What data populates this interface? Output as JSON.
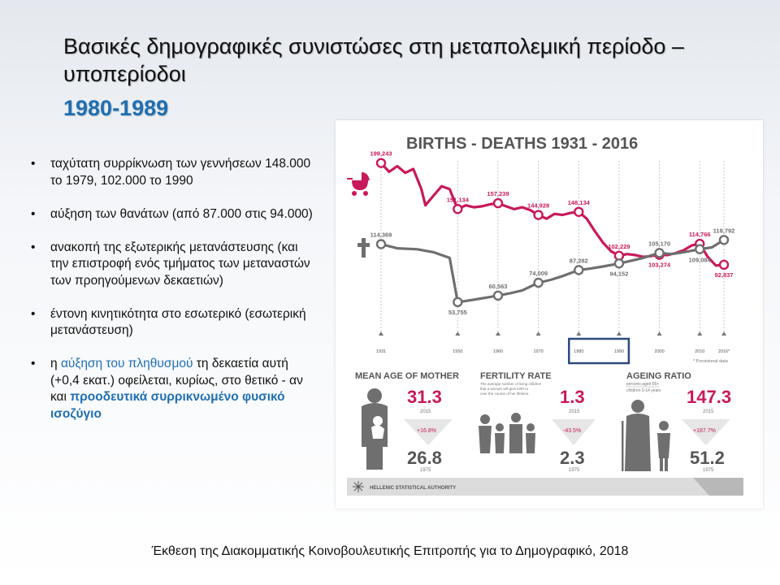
{
  "slide": {
    "title": "Βασικές δημογραφικές συνιστώσες στη μεταπολεμική περίοδο – υποπερίοδοι",
    "subtitle": "1980-1989",
    "caption": "Έκθεση της Διακομματικής Κοινοβουλευτικής Επιτροπής για το Δημογραφικό, 2018"
  },
  "bullets": [
    {
      "text": "ταχύτατη συρρίκνωση των γεννήσεων 148.000 το 1979, 102.000 το 1990"
    },
    {
      "text": "αύξηση των θανάτων (από 87.000 στις 94.000)"
    },
    {
      "text": "ανακοπή της εξωτερικής μετανάστευσης (και την επιστροφή ενός τμήματος των μεταναστών των προηγούμενων δεκαετιών)"
    },
    {
      "text": "έντονη κινητικότητα στο εσωτερικό (εσωτερική μετανάστευση)"
    },
    {
      "pre": "η ",
      "highlight": "αύξηση του πληθυσμού",
      "mid": " τη δεκαετία αυτή (+0,4 εκατ.) οφείλεται, κυρίως, στο θετικό - αν και ",
      "highlight_bold": "προοδευτικά συρρικνωμένο φυσικό ισοζύγιο"
    }
  ],
  "infographic": {
    "title": "BIRTHS - DEATHS 1931 - 2016",
    "provisional_note": "* Provisional data",
    "authority": "HELLENIC STATISTICAL AUTHORITY",
    "colors": {
      "births": "#c8195a",
      "deaths": "#6f6f6f",
      "highlight_box": "#2c4a7c"
    },
    "mean_age": {
      "label": "MEAN AGE OF MOTHER",
      "current": "31.3",
      "current_year": "2015",
      "change": "+16.8%",
      "past": "26.8",
      "past_year": "1975"
    },
    "fertility": {
      "label": "FERTILITY RATE",
      "desc": [
        "The average number of living children",
        "that a woman will give birth to",
        "over the course of her lifetime."
      ],
      "current": "1.3",
      "current_year": "2015",
      "change": "-43.5%",
      "past": "2.3",
      "past_year": "1975"
    },
    "ageing": {
      "label": "AGEING RATIO",
      "desc": [
        "persons aged 65+",
        "children 0-14 years"
      ],
      "current": "147.3",
      "current_year": "2015",
      "change": "+187.7%",
      "past": "51.2",
      "past_year": "1975"
    }
  },
  "chart_data": {
    "type": "line",
    "title": "BIRTHS - DEATHS 1931 - 2016",
    "xlim": [
      1931,
      2016
    ],
    "x_ticks": [
      "1931",
      "1950",
      "1960",
      "1970",
      "1980",
      "1990",
      "2000",
      "2010",
      "2016*"
    ],
    "x_tick_values": [
      1931,
      1950,
      1960,
      1970,
      1980,
      1990,
      2000,
      2010,
      2016
    ],
    "highlight_range": [
      1980,
      1990
    ],
    "series": [
      {
        "key": "births",
        "x": [
          1931,
          1933,
          1935,
          1937,
          1939,
          1941,
          1942,
          1944,
          1946,
          1948,
          1950,
          1952,
          1954,
          1956,
          1958,
          1960,
          1962,
          1964,
          1966,
          1968,
          1970,
          1972,
          1974,
          1976,
          1978,
          1980,
          1982,
          1984,
          1986,
          1988,
          1990,
          1992,
          1994,
          1996,
          1998,
          2000,
          2002,
          2004,
          2006,
          2008,
          2010,
          2012,
          2014,
          2016
        ],
        "values": [
          199243,
          190000,
          196000,
          189000,
          193000,
          172000,
          155000,
          165000,
          175000,
          172000,
          151134,
          155000,
          153000,
          154000,
          156000,
          157239,
          154000,
          151000,
          153000,
          150000,
          144928,
          141000,
          146000,
          145000,
          147000,
          148134,
          141000,
          128000,
          116000,
          107000,
          102229,
          104000,
          103000,
          101000,
          102000,
          103274,
          103000,
          105000,
          108000,
          113000,
          114766,
          101000,
          92000,
          92837
        ],
        "labels": [
          {
            "x": 1931,
            "text": "199,243"
          },
          {
            "x": 1950,
            "text": "151,134"
          },
          {
            "x": 1960,
            "text": "157,239"
          },
          {
            "x": 1970,
            "text": "144,928"
          },
          {
            "x": 1980,
            "text": "148,134"
          },
          {
            "x": 1990,
            "text": "102,229"
          },
          {
            "x": 2000,
            "text": "103,274"
          },
          {
            "x": 2010,
            "text": "114,766"
          },
          {
            "x": 2016,
            "text": "92,837"
          }
        ]
      },
      {
        "key": "deaths",
        "x": [
          1931,
          1935,
          1940,
          1944,
          1948,
          1950,
          1952,
          1955,
          1958,
          1960,
          1963,
          1966,
          1970,
          1973,
          1976,
          1980,
          1983,
          1986,
          1990,
          1993,
          1996,
          2000,
          2003,
          2006,
          2010,
          2013,
          2016
        ],
        "values": [
          114369,
          110000,
          109000,
          106000,
          100000,
          53755,
          55000,
          57000,
          59000,
          60563,
          63000,
          66000,
          74009,
          77000,
          81000,
          87282,
          89000,
          91000,
          94152,
          97000,
          100000,
          105170,
          104000,
          106000,
          109084,
          111000,
          118792
        ],
        "labels": [
          {
            "x": 1931,
            "text": "114,369"
          },
          {
            "x": 1950,
            "text": "53,755"
          },
          {
            "x": 1960,
            "text": "60,563"
          },
          {
            "x": 1970,
            "text": "74,009"
          },
          {
            "x": 1980,
            "text": "87,282"
          },
          {
            "x": 1990,
            "text": "94,152"
          },
          {
            "x": 2000,
            "text": "105,170"
          },
          {
            "x": 2010,
            "text": "109,084"
          },
          {
            "x": 2016,
            "text": "118,792"
          }
        ]
      }
    ]
  }
}
